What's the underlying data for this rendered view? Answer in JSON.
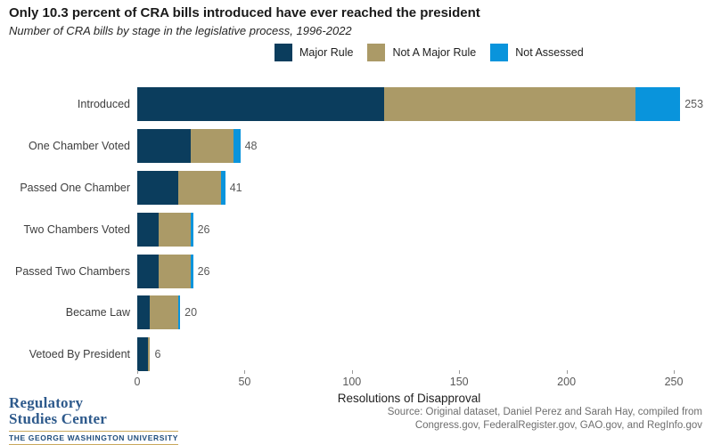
{
  "header": {
    "title": "Only 10.3 percent of CRA bills introduced have ever reached the president",
    "subtitle": "Number of CRA bills by stage in the legislative process, 1996-2022"
  },
  "legend": [
    {
      "label": "Major Rule",
      "color": "#0b3d5d"
    },
    {
      "label": "Not A Major Rule",
      "color": "#ab9a67"
    },
    {
      "label": "Not Assessed",
      "color": "#0994dc"
    }
  ],
  "chart_data": {
    "type": "bar",
    "orientation": "horizontal",
    "stacked": true,
    "title": "Only 10.3 percent of CRA bills introduced have ever reached the president",
    "subtitle": "Number of CRA bills by stage in the legislative process, 1996-2022",
    "categories": [
      "Introduced",
      "One Chamber Voted",
      "Passed One Chamber",
      "Two Chambers Voted",
      "Passed Two Chambers",
      "Became Law",
      "Vetoed By President"
    ],
    "series": [
      {
        "name": "Major Rule",
        "color": "#0b3d5d",
        "values": [
          115,
          25,
          19,
          10,
          10,
          6,
          5
        ]
      },
      {
        "name": "Not A Major Rule",
        "color": "#ab9a67",
        "values": [
          117,
          20,
          20,
          15,
          15,
          13,
          1
        ]
      },
      {
        "name": "Not Assessed",
        "color": "#0994dc",
        "values": [
          21,
          3,
          2,
          1,
          1,
          1,
          0
        ]
      }
    ],
    "totals": [
      253,
      48,
      41,
      26,
      26,
      20,
      6
    ],
    "xlabel": "Resolutions of Disapproval",
    "ylabel": "",
    "x_ticks": [
      0,
      50,
      100,
      150,
      200,
      250
    ],
    "xlim": [
      0,
      253
    ],
    "grid": false,
    "legend_position": "top"
  },
  "footer": {
    "logo_line1": "Regulatory",
    "logo_line2": "Studies Center",
    "logo_line3": "THE GEORGE WASHINGTON UNIVERSITY",
    "source_line1": "Source: Original dataset, Daniel Perez and Sarah Hay, compiled from",
    "source_line2": "Congress.gov, FederalRegister.gov, GAO.gov, and RegInfo.gov"
  }
}
